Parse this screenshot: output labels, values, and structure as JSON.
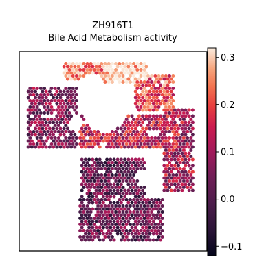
{
  "chart_data": {
    "type": "heatmap",
    "plot_kind": "spatial scatter (Visium spots)",
    "title_line1": "ZH916T1",
    "title_line2": "Bile Acid Metabolism activity",
    "xlabel": "",
    "ylabel": "",
    "show_axis_ticks": false,
    "grid": false,
    "colormap": "rocket",
    "colorbar": {
      "position": "right",
      "vmin": -0.12,
      "vmax": 0.32,
      "ticks": [
        -0.1,
        0.0,
        0.1,
        0.2,
        0.3
      ],
      "tick_labels": [
        "−0.1",
        "0.0",
        "0.1",
        "0.2",
        "0.3"
      ]
    },
    "region_values": [
      {
        "region": "top arc",
        "activity": 0.27
      },
      {
        "region": "upper-right arc",
        "activity": 0.2
      },
      {
        "region": "left lobe",
        "activity": 0.06
      },
      {
        "region": "central band",
        "activity": 0.14
      },
      {
        "region": "right flank",
        "activity": 0.1
      },
      {
        "region": "lower tail",
        "activity": 0.02
      }
    ]
  }
}
